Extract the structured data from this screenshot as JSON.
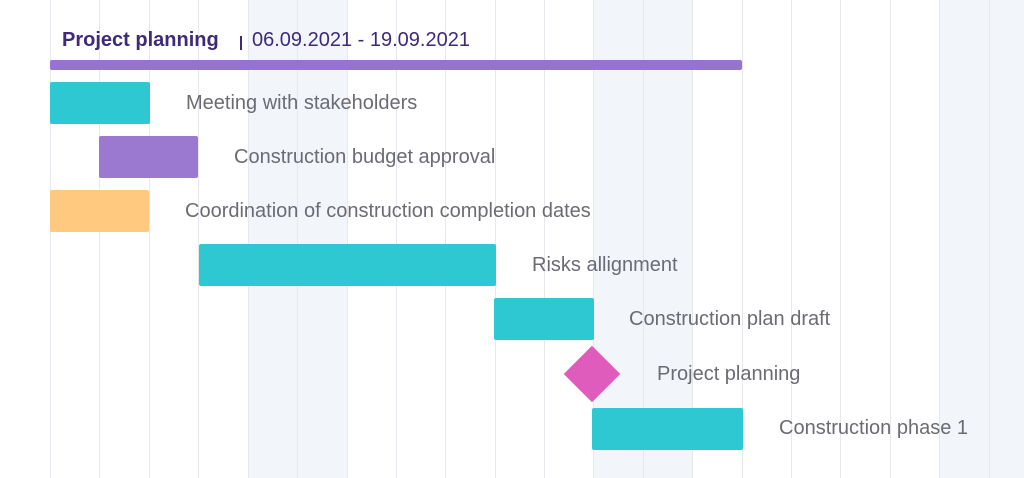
{
  "colors": {
    "summary": "#9673cf",
    "teal": "#2ec8d3",
    "purple": "#9b79d1",
    "orange": "#ffca80",
    "milestone": "#df5cbc"
  },
  "project": {
    "title": "Project planning",
    "dates": "06.09.2021 - 19.09.2021"
  },
  "tasks": [
    {
      "label": "Meeting with stakeholders",
      "type": "task",
      "color": "teal"
    },
    {
      "label": "Construction budget approval",
      "type": "task",
      "color": "purple"
    },
    {
      "label": "Coordination of construction completion dates",
      "type": "task",
      "color": "orange"
    },
    {
      "label": "Risks allignment",
      "type": "task",
      "color": "teal"
    },
    {
      "label": "Construction plan draft",
      "type": "task",
      "color": "teal"
    },
    {
      "label": "Project planning",
      "type": "milestone",
      "color": "milestone"
    },
    {
      "label": "Construction phase 1",
      "type": "task",
      "color": "teal"
    }
  ]
}
